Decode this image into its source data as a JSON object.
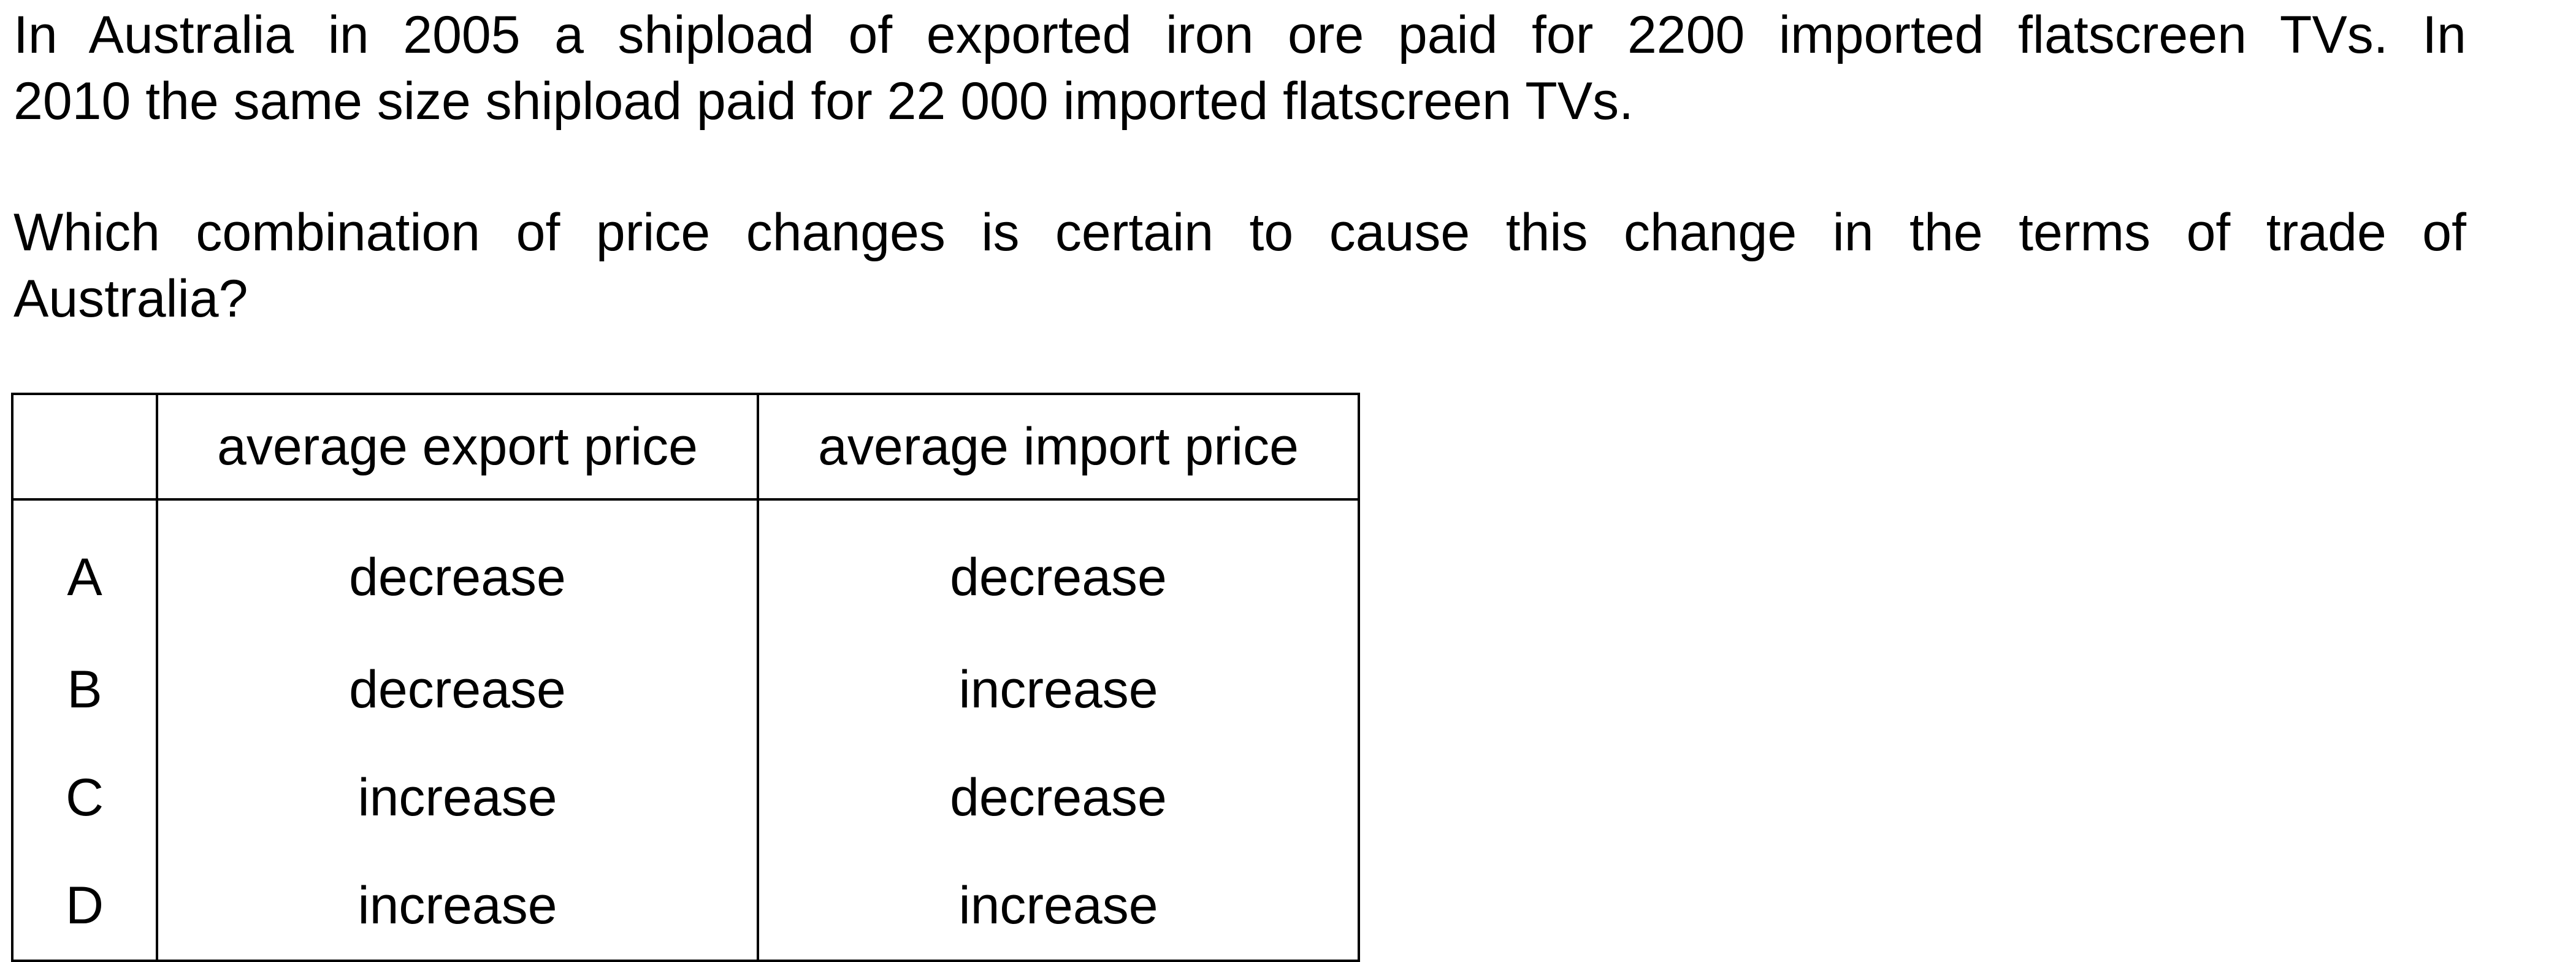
{
  "question": {
    "line1": "In Australia in 2005 a shipload of exported iron ore paid for 2200 imported flatscreen TVs. In",
    "line2": "2010 the same size shipload paid for 22 000 imported flatscreen TVs.",
    "line3": "Which combination of price changes is certain to cause this change in the terms of trade of",
    "line4": "Australia?"
  },
  "table": {
    "headers": [
      "",
      "average export price",
      "average import price"
    ],
    "rows": [
      {
        "letter": "A",
        "export": "decrease",
        "import": "decrease"
      },
      {
        "letter": "B",
        "export": "decrease",
        "import": "increase"
      },
      {
        "letter": "C",
        "export": "increase",
        "import": "decrease"
      },
      {
        "letter": "D",
        "export": "increase",
        "import": "increase"
      }
    ]
  }
}
